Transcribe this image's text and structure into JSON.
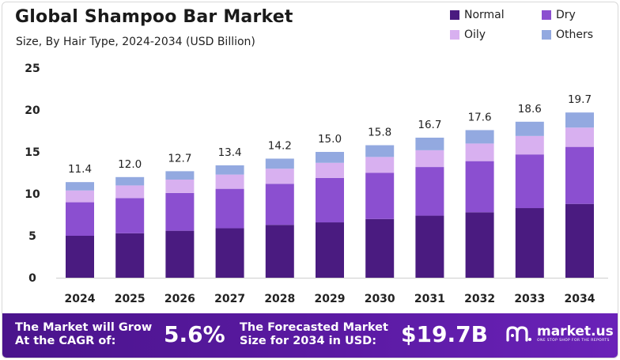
{
  "colors": {
    "normal": "#4a1b80",
    "dry": "#8b4fd0",
    "oily": "#d8b0f0",
    "others": "#93a9e0",
    "footer": "#4a148c"
  },
  "legend": [
    "Normal",
    "Dry",
    "Oily",
    "Others"
  ],
  "chart_data": {
    "type": "bar",
    "stacked": true,
    "title": "Global Shampoo Bar Market",
    "subtitle": "Size, By Hair Type, 2024-2034 (USD Billion)",
    "categories": [
      "2024",
      "2025",
      "2026",
      "2027",
      "2028",
      "2029",
      "2030",
      "2031",
      "2032",
      "2033",
      "2034"
    ],
    "totals": [
      "11.4",
      "12.0",
      "12.7",
      "13.4",
      "14.2",
      "15.0",
      "15.8",
      "16.7",
      "17.6",
      "18.6",
      "19.7"
    ],
    "series": [
      {
        "name": "Normal",
        "values": [
          5.0,
          5.3,
          5.6,
          5.9,
          6.3,
          6.6,
          7.0,
          7.4,
          7.8,
          8.3,
          8.8
        ]
      },
      {
        "name": "Dry",
        "values": [
          4.0,
          4.2,
          4.5,
          4.7,
          4.9,
          5.3,
          5.5,
          5.8,
          6.1,
          6.4,
          6.8
        ]
      },
      {
        "name": "Oily",
        "values": [
          1.4,
          1.5,
          1.6,
          1.7,
          1.8,
          1.8,
          1.9,
          2.0,
          2.1,
          2.2,
          2.3
        ]
      },
      {
        "name": "Others",
        "values": [
          1.0,
          1.0,
          1.0,
          1.1,
          1.2,
          1.3,
          1.4,
          1.5,
          1.6,
          1.7,
          1.8
        ]
      }
    ],
    "yticks": [
      "25",
      "20",
      "15",
      "10",
      "5",
      "0"
    ],
    "ylim": [
      0,
      25
    ],
    "grid": false,
    "legend_position": "top-right"
  },
  "footer": {
    "cagr_label": "The Market will Grow\nAt the CAGR of:",
    "cagr_value": "5.6%",
    "forecast_label": "The Forecasted Market\nSize for 2034 in USD:",
    "forecast_value": "$19.7B",
    "brand": "market.us",
    "tagline": "ONE STOP SHOP FOR THE REPORTS"
  }
}
